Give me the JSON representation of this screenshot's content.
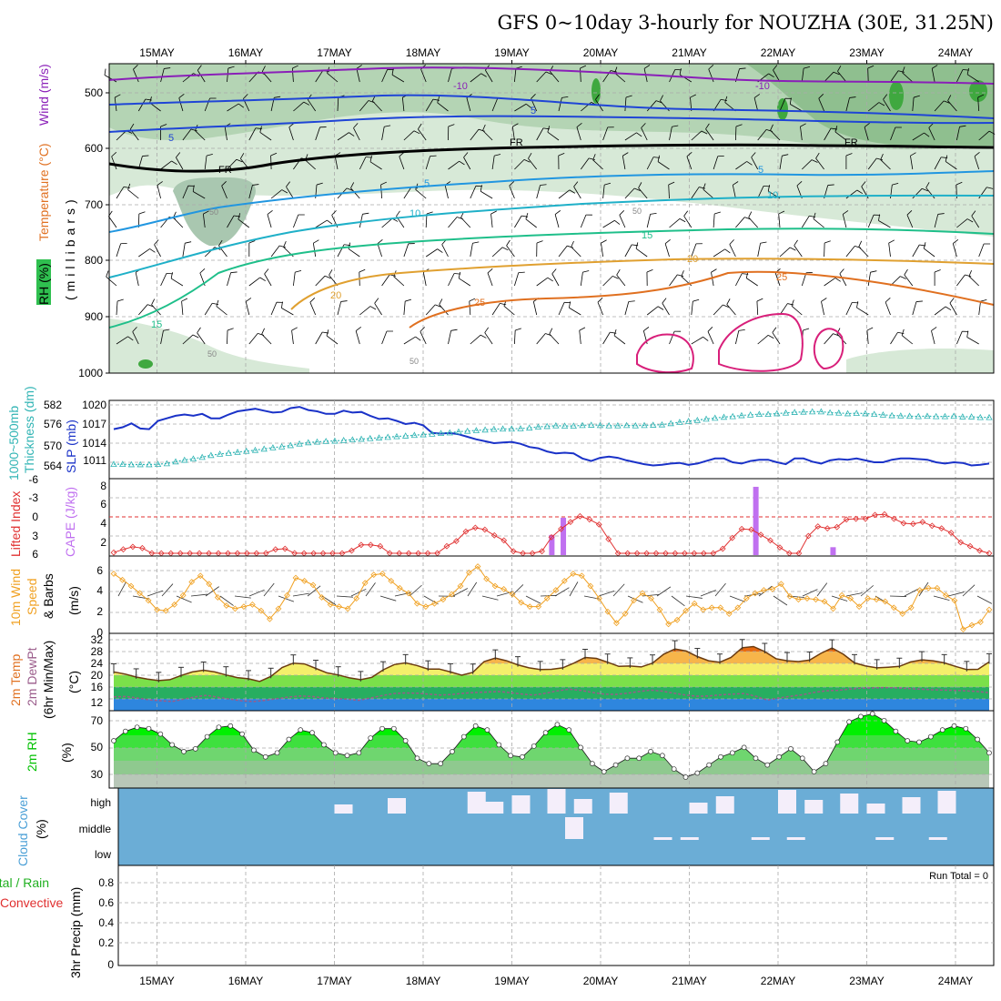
{
  "title": "GFS 0~10day 3-hourly for NOUZHA (30E, 31.25N)",
  "dates": [
    "15MAY",
    "16MAY",
    "17MAY",
    "18MAY",
    "19MAY",
    "20MAY",
    "21MAY",
    "22MAY",
    "23MAY",
    "24MAY"
  ],
  "colors": {
    "purple": "#8a1fb8",
    "blue": "#1f45d6",
    "teal": "#1fb0c8",
    "green_iso": "#1fbf8a",
    "orange": "#e0a030",
    "dkorange": "#e07020",
    "magenta": "#d81f7a",
    "slp": "#1a32c8",
    "thick": "#30b4b4",
    "li": "#e03030",
    "cape": "#c070f0",
    "wind": "#f0a020",
    "rh": "#00e000",
    "cloud": "#6badd6"
  },
  "panels": {
    "upper": {
      "ylabel_rh": "RH (%)",
      "ylabel_temp": "Temperature (°C)",
      "ylabel_wind": "Wind (m/s)",
      "ylabel_mb": "(millibars)",
      "levels": [
        "500",
        "600",
        "700",
        "800",
        "900",
        "1000"
      ],
      "iso_labels": [
        "-10",
        "-10",
        "5",
        "5",
        "5",
        "5",
        "FR",
        "FR",
        "FR",
        "10",
        "10",
        "15",
        "15",
        "20",
        "20",
        "25",
        "25",
        "50",
        "50",
        "50",
        "50"
      ]
    },
    "thickness": {
      "ylabel_left": "1000~500mb",
      "ylabel_left2": "Thickness (dm)",
      "ylabel_right": "SLP (mb)",
      "left_ticks": [
        "582",
        "576",
        "570",
        "564"
      ],
      "right_ticks": [
        "1020",
        "1017",
        "1014",
        "1011"
      ]
    },
    "stability": {
      "ylabel_left": "Lifted Index",
      "ylabel_right": "CAPE (J/kg)",
      "left_ticks": [
        "-6",
        "-3",
        "0",
        "3",
        "6"
      ],
      "right_ticks": [
        "8",
        "6",
        "4",
        "2"
      ]
    },
    "wind10": {
      "ylabel1": "10m Wind",
      "ylabel2": "Speed",
      "ylabel3": "& Barbs",
      "ylabel_unit": "(m/s)",
      "ticks": [
        "6",
        "4",
        "2",
        "0"
      ]
    },
    "temp2m": {
      "ylabel1": "2m Temp",
      "ylabel2": "2m DewPt",
      "ylabel3": "(6hr Min/Max)",
      "ylabel_unit": "(°C)",
      "ticks": [
        "32",
        "28",
        "24",
        "20",
        "16",
        "12"
      ]
    },
    "rh2m": {
      "ylabel": "2m RH",
      "ylabel_unit": "(%)",
      "ticks": [
        "70",
        "50",
        "30"
      ]
    },
    "cloud": {
      "ylabel": "Cloud Cover",
      "ylabel_unit": "(%)",
      "levels": [
        "high",
        "middle",
        "low"
      ]
    },
    "precip": {
      "ylabel1": "Total / Rain",
      "ylabel2": "Convective",
      "ylabel3": "3hr Precip (mm)",
      "ticks": [
        "0.8",
        "0.6",
        "0.4",
        "0.2",
        "0"
      ],
      "run_total": "Run Total = 0"
    }
  },
  "chart_data": [
    {
      "type": "line",
      "title": "1000~500mb Thickness / SLP",
      "series": [
        {
          "name": "SLP (mb)",
          "values": [
            1016.2,
            1016.5,
            1017.1,
            1016.3,
            1016.2,
            1017.5,
            1017.9,
            1018.3,
            1018.5,
            1018.3,
            1018.6,
            1017.9,
            1017.9,
            1018.5,
            1019.0,
            1019.2,
            1019.4,
            1019.1,
            1018.8,
            1018.9,
            1019.5,
            1019.7,
            1019.2,
            1019.0,
            1018.6,
            1018.6,
            1019.1,
            1018.8,
            1018.9,
            1018.3,
            1017.8,
            1017.9,
            1017.5,
            1017.0,
            1017.2,
            1016.8,
            1015.6,
            1015.5,
            1015.6,
            1015.4,
            1015.0,
            1014.6,
            1014.3,
            1014.0,
            1014.1,
            1014.2,
            1013.9,
            1013.4,
            1013.2,
            1012.7,
            1012.4,
            1012.5,
            1012.4,
            1011.6,
            1011.2,
            1011.7,
            1011.9,
            1011.7,
            1011.3,
            1011.0,
            1010.7,
            1010.5,
            1010.6,
            1010.8,
            1010.9,
            1010.6,
            1010.8,
            1011.2,
            1011.6,
            1011.6,
            1011.0,
            1010.8,
            1011.2,
            1011.4,
            1011.4,
            1011.0,
            1010.7,
            1011.6,
            1011.6,
            1011.1,
            1010.8,
            1011.3,
            1011.5,
            1011.4,
            1011.6,
            1011.3,
            1011.0,
            1011.0,
            1011.4,
            1011.6,
            1011.6,
            1011.5,
            1011.4,
            1011.0,
            1010.8,
            1011.0,
            1010.9,
            1010.5,
            1010.6,
            1010.8
          ]
        },
        {
          "name": "Thickness (dm)",
          "values": [
            563.4,
            563.4,
            563.3,
            563.3,
            563.3,
            563.4,
            563.6,
            564.2,
            564.7,
            565.1,
            565.6,
            566.2,
            566.6,
            566.9,
            567.2,
            567.5,
            567.8,
            568.2,
            568.6,
            568.9,
            569.3,
            569.8,
            570.2,
            570.4,
            570.6,
            570.7,
            570.9,
            571.1,
            571.3,
            571.5,
            571.7,
            571.9,
            572.1,
            572.3,
            572.5,
            572.7,
            572.9,
            573.1,
            573.3,
            573.6,
            573.8,
            574.0,
            574.2,
            574.4,
            574.5,
            574.5,
            574.6,
            574.8,
            575.1,
            575.3,
            575.5,
            575.4,
            575.4,
            575.6,
            575.7,
            575.6,
            575.5,
            575.5,
            575.6,
            575.5,
            575.6,
            575.7,
            575.8,
            576.2,
            576.6,
            576.9,
            577.2,
            577.6,
            577.9,
            578.2,
            578.4,
            578.7,
            578.9,
            579.1,
            579.1,
            579.3,
            579.5,
            579.7,
            579.8,
            579.9,
            579.9,
            579.6,
            579.5,
            579.3,
            579.4,
            579.3,
            579.1,
            578.9,
            578.7,
            578.6,
            578.5,
            578.4,
            578.5,
            578.4,
            578.4,
            578.5,
            578.3,
            578.3,
            578.1,
            578.1
          ]
        }
      ]
    },
    {
      "type": "bar",
      "title": "CAPE (J/kg)",
      "x_day": [
        5.45,
        5.58,
        7.75,
        8.62
      ],
      "values": [
        2.8,
        5.2,
        9.5,
        1.1
      ]
    },
    {
      "type": "line",
      "title": "Lifted Index",
      "values": [
        5.6,
        5.1,
        4.7,
        4.9,
        5.7,
        6.4,
        6.6,
        6.8,
        7.2,
        6.8,
        6.2,
        6.4,
        6.7,
        6.9,
        7.0,
        6.8,
        5.7,
        5.1,
        5.0,
        5.7,
        6.6,
        7.0,
        7.0,
        6.7,
        6.4,
        5.3,
        4.4,
        4.4,
        4.6,
        5.7,
        6.7,
        7.0,
        7.0,
        6.6,
        5.7,
        4.6,
        3.8,
        2.3,
        1.7,
        2.0,
        2.9,
        3.7,
        5.4,
        6.0,
        6.3,
        5.4,
        3.2,
        1.9,
        0.8,
        -0.1,
        0.4,
        1.2,
        3.5,
        5.9,
        6.8,
        7.3,
        7.7,
        7.2,
        6.2,
        6.0,
        6.4,
        7.0,
        6.8,
        6.1,
        5.0,
        3.3,
        1.9,
        2.0,
        2.8,
        3.7,
        4.8,
        6.2,
        6.0,
        3.0,
        1.5,
        1.8,
        1.6,
        0.4,
        0.3,
        0.3,
        -0.3,
        -0.4,
        0.3,
        1.0,
        1.1,
        0.8,
        1.4,
        1.8,
        2.5,
        4.0,
        4.6,
        5.3,
        5.8
      ]
    },
    {
      "type": "line",
      "title": "10m Wind Speed (m/s)",
      "values": [
        5.8,
        5.2,
        4.6,
        3.9,
        3.2,
        2.3,
        2.2,
        2.8,
        3.7,
        5.0,
        5.6,
        4.8,
        3.5,
        2.7,
        2.4,
        2.6,
        2.8,
        2.2,
        1.4,
        2.4,
        3.7,
        5.4,
        5.1,
        4.7,
        3.5,
        2.8,
        2.6,
        2.4,
        3.4,
        4.9,
        5.7,
        5.8,
        5.1,
        4.4,
        3.9,
        2.9,
        2.6,
        2.9,
        3.3,
        3.8,
        4.6,
        5.9,
        6.5,
        5.3,
        4.6,
        4.3,
        3.8,
        3.0,
        2.6,
        2.6,
        3.4,
        4.2,
        5.1,
        5.8,
        5.6,
        4.6,
        3.4,
        2.1,
        1.0,
        1.9,
        3.2,
        3.9,
        3.4,
        2.3,
        0.9,
        1.3,
        2.2,
        2.9,
        2.3,
        2.5,
        2.5,
        1.9,
        2.5,
        3.4,
        3.9,
        4.2,
        4.3,
        4.8,
        3.6,
        3.3,
        3.4,
        3.3,
        3.1,
        2.4,
        3.7,
        3.4,
        2.6,
        3.4,
        3.3,
        3.1,
        2.5,
        1.9,
        2.5,
        4.2,
        4.4,
        4.4,
        3.7,
        3.2,
        0.4,
        0.8,
        1.1,
        2.3
      ]
    },
    {
      "type": "area",
      "title": "2m Temp (°C)",
      "values": [
        22.6,
        21.9,
        20.9,
        20.2,
        19.7,
        20.0,
        21.4,
        22.6,
        23.2,
        22.6,
        21.6,
        20.7,
        20.3,
        19.4,
        21.1,
        24.1,
        25.6,
        25.3,
        23.8,
        22.3,
        21.6,
        20.6,
        20.0,
        20.8,
        23.3,
        25.1,
        25.7,
        24.8,
        23.6,
        23.6,
        22.6,
        21.5,
        22.5,
        26.1,
        27.3,
        26.4,
        25.0,
        24.0,
        23.4,
        23.5,
        24.0,
        25.6,
        27.5,
        27.2,
        25.9,
        24.5,
        24.6,
        24.3,
        25.6,
        28.6,
        30.4,
        29.7,
        27.8,
        26.4,
        25.9,
        27.5,
        30.8,
        31.2,
        29.5,
        27.1,
        26.4,
        26.1,
        26.6,
        28.9,
        30.7,
        28.6,
        25.7,
        24.6,
        24.0,
        24.2,
        24.5,
        26.0,
        26.7,
        26.4,
        25.7,
        24.5,
        23.4,
        23.5,
        26.0
      ]
    },
    {
      "type": "line",
      "title": "2m DewPt (°C)",
      "values": [
        14.2,
        14.3,
        13.8,
        13.2,
        12.9,
        12.6,
        13.4,
        14.2,
        14.7,
        14.0,
        13.4,
        12.8,
        12.6,
        13.0,
        13.6,
        14.1,
        14.5,
        14.3,
        13.8,
        13.6,
        13.4,
        13.0,
        13.8,
        14.6,
        15.3,
        15.5,
        15.4,
        15.1,
        14.8,
        15.0,
        15.4,
        15.7,
        15.8,
        16.0,
        15.6,
        15.1,
        14.8,
        15.4,
        16.2,
        16.8,
        16.4,
        15.7,
        15.1,
        15.0,
        15.4,
        16.0,
        16.5,
        16.1,
        15.4,
        14.8,
        14.4,
        14.5,
        14.9,
        15.1,
        15.3,
        14.4,
        13.1,
        13.8,
        14.4,
        14.9,
        15.7,
        16.2,
        16.4,
        16.8,
        17.1,
        17.2,
        17.3,
        17.2,
        17.0,
        16.8,
        16.6,
        16.5,
        16.4,
        16.2,
        16.0,
        15.6
      ]
    },
    {
      "type": "area",
      "title": "2m RH (%)",
      "values": [
        55,
        62,
        65,
        64,
        60,
        52,
        47,
        49,
        58,
        65,
        66,
        60,
        48,
        43,
        46,
        56,
        63,
        61,
        52,
        46,
        44,
        46,
        57,
        64,
        64,
        55,
        42,
        38,
        38,
        47,
        58,
        66,
        63,
        52,
        44,
        43,
        51,
        61,
        67,
        63,
        50,
        38,
        32,
        37,
        42,
        42,
        47,
        44,
        34,
        28,
        31,
        37,
        43,
        46,
        50,
        42,
        37,
        43,
        49,
        42,
        32,
        38,
        54,
        69,
        73,
        75,
        70,
        62,
        55,
        54,
        58,
        63,
        66,
        64,
        56,
        46
      ]
    },
    {
      "type": "bar",
      "title": "Cloud Cover (%)",
      "series": [
        {
          "name": "high",
          "x_day": [
            3.0,
            3.6,
            4.5,
            4.7,
            5.0,
            5.4,
            5.7,
            6.1,
            7.0,
            7.3,
            8.0,
            8.3,
            8.7,
            9.0,
            9.4,
            9.8
          ]
        },
        {
          "name": "middle",
          "x_day": [
            5.6
          ]
        },
        {
          "name": "low",
          "x_day": [
            6.6,
            6.9,
            7.7,
            8.1,
            9.1,
            9.7
          ]
        }
      ]
    },
    {
      "type": "bar",
      "title": "3hr Precip (mm)",
      "values": []
    }
  ]
}
